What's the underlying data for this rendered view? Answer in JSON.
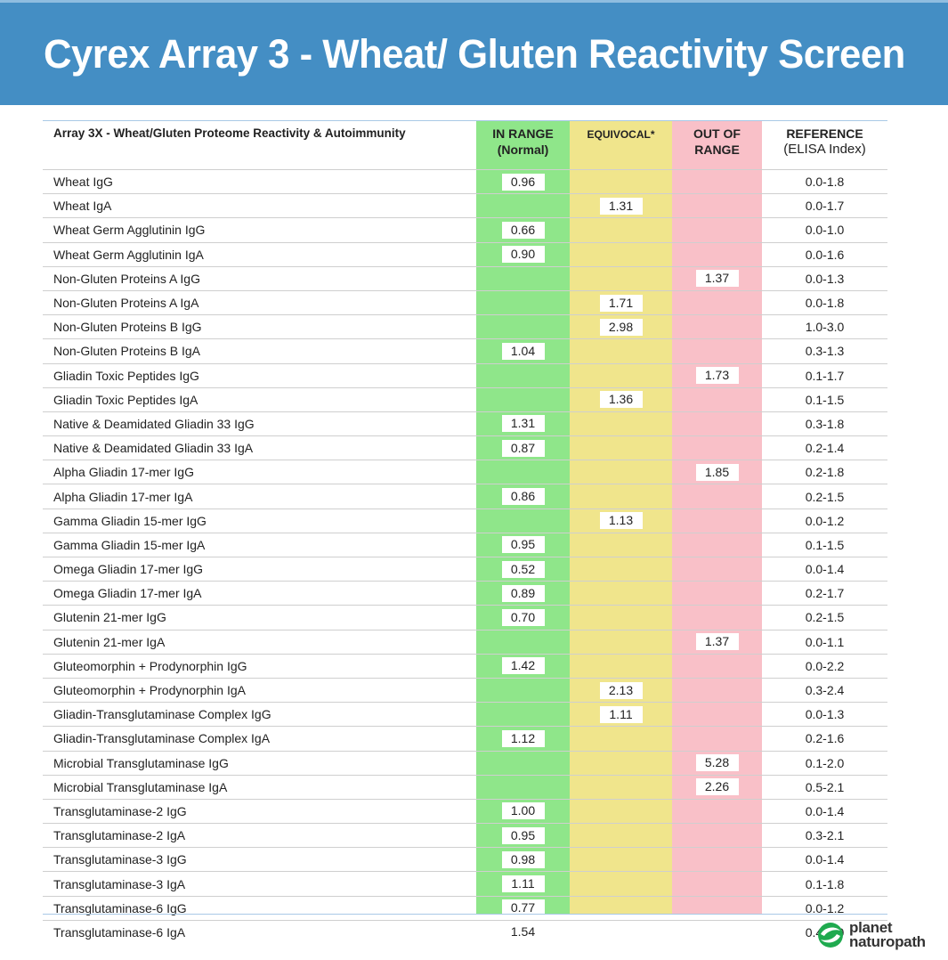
{
  "banner": {
    "title": "Cyrex Array 3 - Wheat/ Gluten Reactivity Screen"
  },
  "colors": {
    "banner": "#448ec4",
    "in_range": "#8fe68a",
    "equivocal": "#f0e58c",
    "out_of_range": "#f9c0c8"
  },
  "table": {
    "headers": {
      "label": "Array 3X - Wheat/Gluten Proteome Reactivity & Autoimmunity",
      "in_range_1": "IN RANGE",
      "in_range_2": "(Normal)",
      "equivocal": "EQUIVOCAL*",
      "out_1": "OUT OF",
      "out_2": "RANGE",
      "ref_1": "REFERENCE",
      "ref_2": "(ELISA Index)"
    },
    "rows": [
      {
        "label": "Wheat IgG",
        "in": "0.96",
        "eq": "",
        "out": "",
        "ref": "0.0-1.8"
      },
      {
        "label": "Wheat IgA",
        "in": "",
        "eq": "1.31",
        "out": "",
        "ref": "0.0-1.7"
      },
      {
        "label": "Wheat Germ Agglutinin IgG",
        "in": "0.66",
        "eq": "",
        "out": "",
        "ref": "0.0-1.0"
      },
      {
        "label": "Wheat Germ Agglutinin IgA",
        "in": "0.90",
        "eq": "",
        "out": "",
        "ref": "0.0-1.6"
      },
      {
        "label": "Non-Gluten Proteins A IgG",
        "in": "",
        "eq": "",
        "out": "1.37",
        "ref": "0.0-1.3"
      },
      {
        "label": "Non-Gluten Proteins A IgA",
        "in": "",
        "eq": "1.71",
        "out": "",
        "ref": "0.0-1.8"
      },
      {
        "label": "Non-Gluten Proteins B IgG",
        "in": "",
        "eq": "2.98",
        "out": "",
        "ref": "1.0-3.0"
      },
      {
        "label": "Non-Gluten Proteins B IgA",
        "in": "1.04",
        "eq": "",
        "out": "",
        "ref": "0.3-1.3"
      },
      {
        "label": "Gliadin Toxic Peptides IgG",
        "in": "",
        "eq": "",
        "out": "1.73",
        "ref": "0.1-1.7"
      },
      {
        "label": "Gliadin Toxic Peptides IgA",
        "in": "",
        "eq": "1.36",
        "out": "",
        "ref": "0.1-1.5"
      },
      {
        "label": "Native & Deamidated Gliadin 33 IgG",
        "in": "1.31",
        "eq": "",
        "out": "",
        "ref": "0.3-1.8"
      },
      {
        "label": "Native & Deamidated Gliadin 33 IgA",
        "in": "0.87",
        "eq": "",
        "out": "",
        "ref": "0.2-1.4"
      },
      {
        "label": "Alpha Gliadin 17-mer IgG",
        "in": "",
        "eq": "",
        "out": "1.85",
        "ref": "0.2-1.8"
      },
      {
        "label": "Alpha Gliadin 17-mer IgA",
        "in": "0.86",
        "eq": "",
        "out": "",
        "ref": "0.2-1.5"
      },
      {
        "label": "Gamma Gliadin 15-mer IgG",
        "in": "",
        "eq": "1.13",
        "out": "",
        "ref": "0.0-1.2"
      },
      {
        "label": "Gamma Gliadin 15-mer IgA",
        "in": "0.95",
        "eq": "",
        "out": "",
        "ref": "0.1-1.5"
      },
      {
        "label": "Omega Gliadin 17-mer IgG",
        "in": "0.52",
        "eq": "",
        "out": "",
        "ref": "0.0-1.4"
      },
      {
        "label": "Omega Gliadin 17-mer IgA",
        "in": "0.89",
        "eq": "",
        "out": "",
        "ref": "0.2-1.7"
      },
      {
        "label": "Glutenin 21-mer IgG",
        "in": "0.70",
        "eq": "",
        "out": "",
        "ref": "0.2-1.5"
      },
      {
        "label": "Glutenin 21-mer IgA",
        "in": "",
        "eq": "",
        "out": "1.37",
        "ref": "0.0-1.1"
      },
      {
        "label": "Gluteomorphin + Prodynorphin IgG",
        "in": "1.42",
        "eq": "",
        "out": "",
        "ref": "0.0-2.2"
      },
      {
        "label": "Gluteomorphin + Prodynorphin IgA",
        "in": "",
        "eq": "2.13",
        "out": "",
        "ref": "0.3-2.4"
      },
      {
        "label": "Gliadin-Transglutaminase Complex IgG",
        "in": "",
        "eq": "1.11",
        "out": "",
        "ref": "0.0-1.3"
      },
      {
        "label": "Gliadin-Transglutaminase Complex IgA",
        "in": "1.12",
        "eq": "",
        "out": "",
        "ref": "0.2-1.6"
      },
      {
        "label": "Microbial Transglutaminase IgG",
        "in": "",
        "eq": "",
        "out": "5.28",
        "ref": "0.1-2.0"
      },
      {
        "label": "Microbial Transglutaminase IgA",
        "in": "",
        "eq": "",
        "out": "2.26",
        "ref": "0.5-2.1"
      },
      {
        "label": "Transglutaminase-2 IgG",
        "in": "1.00",
        "eq": "",
        "out": "",
        "ref": "0.0-1.4"
      },
      {
        "label": "Transglutaminase-2 IgA",
        "in": "0.95",
        "eq": "",
        "out": "",
        "ref": "0.3-2.1"
      },
      {
        "label": "Transglutaminase-3 IgG",
        "in": "0.98",
        "eq": "",
        "out": "",
        "ref": "0.0-1.4"
      },
      {
        "label": "Transglutaminase-3 IgA",
        "in": "1.11",
        "eq": "",
        "out": "",
        "ref": "0.1-1.8"
      },
      {
        "label": "Transglutaminase-6 IgG",
        "in": "0.77",
        "eq": "",
        "out": "",
        "ref": "0.0-1.2"
      },
      {
        "label": "Transglutaminase-6 IgA",
        "in": "1.54",
        "eq": "",
        "out": "",
        "ref": "0.4-2.0"
      }
    ]
  },
  "logo": {
    "icon": "planet-naturopath-leaf-icon",
    "line1": "planet",
    "line2": "naturopath"
  }
}
